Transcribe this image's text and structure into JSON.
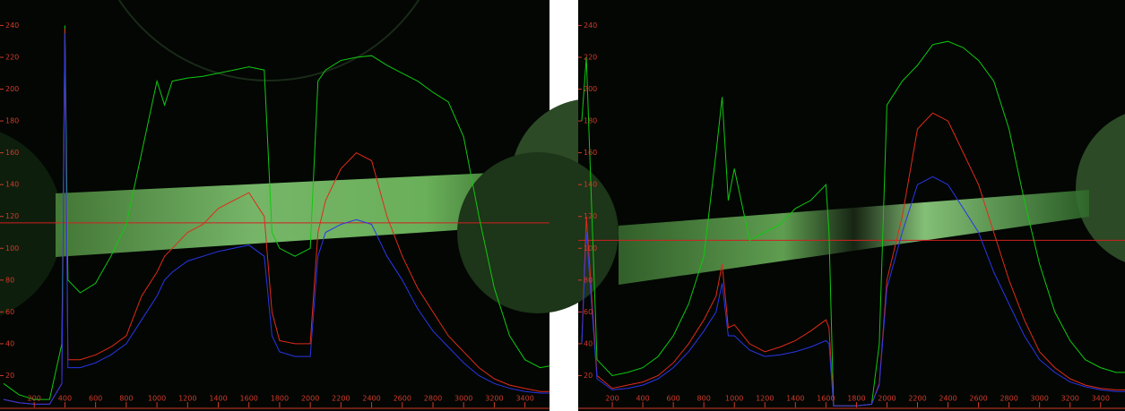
{
  "chart_data": [
    {
      "type": "line",
      "x": [
        0,
        100,
        200,
        300,
        380,
        400,
        420,
        500,
        600,
        700,
        800,
        900,
        1000,
        1050,
        1100,
        1200,
        1300,
        1400,
        1500,
        1600,
        1700,
        1750,
        1800,
        1900,
        2000,
        2050,
        2100,
        2200,
        2300,
        2400,
        2500,
        2600,
        2700,
        2800,
        2900,
        3000,
        3100,
        3200,
        3300,
        3400,
        3500,
        3560
      ],
      "series": [
        {
          "color": "#10c810",
          "values": [
            15,
            8,
            5,
            5,
            40,
            240,
            80,
            72,
            78,
            95,
            115,
            160,
            205,
            190,
            205,
            207,
            208,
            210,
            212,
            214,
            212,
            110,
            100,
            95,
            100,
            205,
            212,
            218,
            220,
            221,
            215,
            210,
            205,
            198,
            192,
            170,
            120,
            75,
            45,
            30,
            25,
            26
          ]
        },
        {
          "color": "#e02a1a",
          "values": [
            5,
            3,
            2,
            2,
            15,
            238,
            30,
            30,
            33,
            38,
            45,
            70,
            85,
            95,
            100,
            110,
            115,
            125,
            130,
            135,
            120,
            60,
            42,
            40,
            40,
            110,
            130,
            150,
            160,
            155,
            120,
            95,
            75,
            60,
            45,
            35,
            25,
            18,
            14,
            12,
            10,
            10
          ]
        },
        {
          "color": "#2a36e8",
          "values": [
            5,
            3,
            2,
            2,
            15,
            235,
            25,
            25,
            28,
            33,
            40,
            55,
            70,
            80,
            85,
            92,
            95,
            98,
            100,
            102,
            95,
            45,
            35,
            32,
            32,
            95,
            110,
            115,
            118,
            115,
            95,
            80,
            62,
            48,
            38,
            28,
            20,
            15,
            12,
            10,
            9,
            9
          ]
        }
      ],
      "hline": 116,
      "hline_color": "#d02020",
      "xlim": [
        0,
        3560
      ],
      "ylim": [
        0,
        256
      ],
      "xticks": [
        200,
        400,
        600,
        800,
        1000,
        1200,
        1400,
        1600,
        1800,
        2000,
        2200,
        2400,
        2600,
        2800,
        3000,
        3200,
        3400
      ],
      "yticks": [
        20,
        40,
        60,
        80,
        100,
        120,
        140,
        160,
        180,
        200,
        220,
        240
      ]
    },
    {
      "type": "line",
      "x": [
        0,
        30,
        100,
        200,
        300,
        400,
        500,
        600,
        700,
        800,
        880,
        920,
        960,
        1000,
        1100,
        1200,
        1300,
        1400,
        1500,
        1600,
        1620,
        1650,
        1800,
        1900,
        1950,
        2000,
        2100,
        2200,
        2300,
        2400,
        2500,
        2600,
        2700,
        2800,
        2900,
        3000,
        3100,
        3200,
        3300,
        3400,
        3500,
        3560
      ],
      "series": [
        {
          "color": "#10c810",
          "values": [
            180,
            220,
            30,
            20,
            22,
            25,
            32,
            45,
            65,
            95,
            160,
            195,
            130,
            150,
            105,
            110,
            115,
            125,
            130,
            140,
            110,
            1,
            1,
            2,
            40,
            190,
            205,
            215,
            228,
            230,
            226,
            218,
            205,
            175,
            130,
            90,
            60,
            42,
            30,
            25,
            22,
            22
          ]
        },
        {
          "color": "#e02a1a",
          "values": [
            40,
            120,
            20,
            12,
            14,
            16,
            20,
            28,
            40,
            55,
            70,
            90,
            50,
            52,
            40,
            35,
            38,
            42,
            48,
            55,
            50,
            1,
            1,
            2,
            15,
            80,
            120,
            175,
            185,
            180,
            160,
            140,
            110,
            80,
            55,
            35,
            25,
            18,
            14,
            12,
            11,
            11
          ]
        },
        {
          "color": "#2a36e8",
          "values": [
            40,
            110,
            18,
            11,
            12,
            14,
            18,
            25,
            35,
            48,
            60,
            78,
            45,
            45,
            36,
            32,
            33,
            35,
            38,
            42,
            40,
            1,
            1,
            2,
            14,
            75,
            110,
            140,
            145,
            140,
            125,
            110,
            85,
            65,
            45,
            30,
            22,
            16,
            13,
            11,
            10,
            10
          ]
        }
      ],
      "hline": 105,
      "hline_color": "#d02020",
      "xlim": [
        0,
        3560
      ],
      "ylim": [
        0,
        256
      ],
      "xticks": [
        200,
        400,
        600,
        800,
        1000,
        1200,
        1400,
        1600,
        1800,
        2000,
        2200,
        2400,
        2600,
        2800,
        3000,
        3200,
        3400
      ],
      "yticks": [
        20,
        40,
        60,
        80,
        100,
        120,
        140,
        160,
        180,
        200,
        220,
        240
      ]
    }
  ]
}
